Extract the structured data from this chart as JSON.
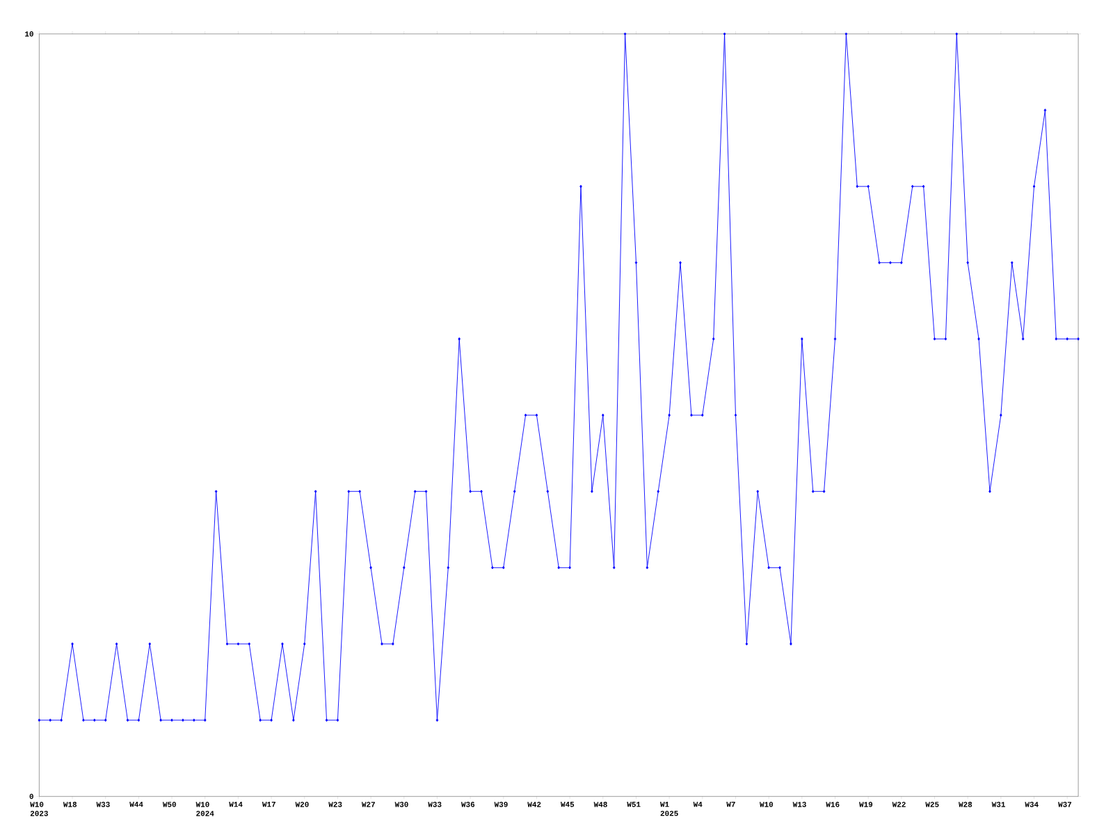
{
  "chart_data": {
    "type": "line",
    "categories": [
      "W10 2023",
      null,
      null,
      "W18",
      null,
      null,
      "W33",
      null,
      null,
      "W44",
      null,
      null,
      "W50",
      null,
      null,
      "W10 2024",
      null,
      null,
      "W14",
      null,
      null,
      "W17",
      null,
      null,
      "W20",
      null,
      null,
      "W23",
      null,
      null,
      "W27",
      null,
      null,
      "W30",
      null,
      null,
      "W33",
      null,
      null,
      "W36",
      null,
      null,
      "W39",
      null,
      null,
      "W42",
      null,
      null,
      "W45",
      null,
      null,
      "W48",
      null,
      null,
      "W51",
      null,
      null,
      "W1 2025",
      null,
      null,
      "W4",
      null,
      null,
      "W7",
      null,
      null,
      "W10",
      null,
      null,
      "W13",
      null,
      null,
      "W16",
      null,
      null,
      "W19",
      null,
      null,
      "W22",
      null,
      null,
      "W25",
      null,
      null,
      "W28",
      null,
      null,
      "W31",
      null,
      null,
      "W34",
      null,
      null,
      "W37",
      null
    ],
    "values": [
      1,
      1,
      1,
      2,
      1,
      1,
      1,
      2,
      1,
      1,
      2,
      1,
      1,
      1,
      1,
      1,
      4,
      2,
      2,
      2,
      1,
      1,
      2,
      1,
      2,
      4,
      1,
      1,
      4,
      4,
      3,
      2,
      2,
      3,
      4,
      4,
      1,
      3,
      6,
      4,
      4,
      3,
      3,
      4,
      5,
      5,
      4,
      3,
      3,
      8,
      4,
      5,
      3,
      10,
      7,
      3,
      4,
      5,
      7,
      5,
      5,
      6,
      10,
      5,
      2,
      4,
      3,
      3,
      2,
      6,
      4,
      4,
      6,
      10,
      8,
      8,
      7,
      7,
      7,
      8,
      8,
      6,
      6,
      10,
      7,
      6,
      4,
      5,
      7,
      6,
      8,
      9,
      6,
      6,
      6
    ],
    "color": "#0000ff",
    "marker": "diamond",
    "line_style": "solid",
    "ylim": [
      0,
      10
    ],
    "yticks": [
      0,
      10
    ],
    "grid": false
  }
}
